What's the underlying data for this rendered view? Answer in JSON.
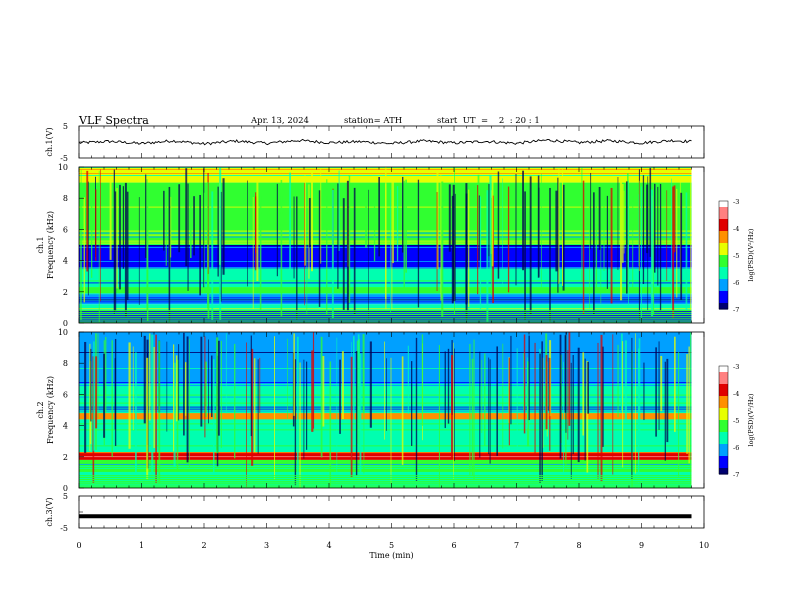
{
  "header": {
    "title": "VLF  Spectra",
    "date": "Apr. 13, 2024",
    "station": "station= ATH",
    "start": "start  UT  =    2  : 20 : 1"
  },
  "chart_data": [
    {
      "type": "line",
      "id": "ch1",
      "ylabel": "ch.1(V)",
      "ylim": [
        -5,
        5
      ],
      "yticks": [
        "5",
        "-5"
      ],
      "x": [
        0,
        0.5,
        1,
        1.5,
        2,
        2.5,
        3,
        3.5,
        4,
        4.5,
        5,
        5.5,
        6,
        6.5,
        7,
        7.5,
        8,
        8.5,
        9,
        9.5,
        9.8
      ],
      "y": [
        -0.3,
        0.2,
        -0.5,
        0.4,
        -0.6,
        0.3,
        -0.4,
        0.5,
        -0.2,
        0.1,
        -0.5,
        0.3,
        -0.3,
        0.2,
        -0.4,
        0.6,
        -0.2,
        0.4,
        -0.3,
        0.5,
        0.1
      ]
    },
    {
      "type": "heatmap",
      "id": "ch1-spectrogram",
      "ylabel_top": "ch.1",
      "ylabel": "Frequency  (kHz)",
      "ylim": [
        0,
        10
      ],
      "yticks": [
        "0",
        "2",
        "4",
        "6",
        "8",
        "10"
      ],
      "colorbar": {
        "label": "log(PSD)(V²/Hz)",
        "ticks": [
          "-3",
          "-4",
          "-5",
          "-6",
          "-7"
        ],
        "range": [
          -7,
          -3
        ]
      },
      "bands_khz": [
        {
          "from": 9.0,
          "to": 10.0,
          "level": -4.9
        },
        {
          "from": 5.0,
          "to": 9.0,
          "level": -5.3
        },
        {
          "from": 3.5,
          "to": 5.0,
          "level": -6.6
        },
        {
          "from": 2.3,
          "to": 3.5,
          "level": -5.7
        },
        {
          "from": 1.9,
          "to": 2.3,
          "level": -5.1
        },
        {
          "from": 1.2,
          "to": 1.9,
          "level": -6.3
        },
        {
          "from": 0.8,
          "to": 1.2,
          "level": -5.5
        },
        {
          "from": 0.0,
          "to": 0.8,
          "level": -6.7
        }
      ]
    },
    {
      "type": "heatmap",
      "id": "ch2-spectrogram",
      "ylabel_top": "ch.2",
      "ylabel": "Frequency  (kHz)",
      "ylim": [
        0,
        10
      ],
      "yticks": [
        "0",
        "2",
        "4",
        "6",
        "8",
        "10"
      ],
      "colorbar": {
        "label": "log(PSD)(V²/Hz)",
        "ticks": [
          "-3",
          "-4",
          "-5",
          "-6",
          "-7"
        ],
        "range": [
          -7,
          -3
        ]
      },
      "bands_khz": [
        {
          "from": 6.5,
          "to": 10.0,
          "level": -6.3
        },
        {
          "from": 4.8,
          "to": 6.5,
          "level": -5.8
        },
        {
          "from": 4.4,
          "to": 4.8,
          "level": -4.2
        },
        {
          "from": 2.3,
          "to": 4.4,
          "level": -5.6
        },
        {
          "from": 1.8,
          "to": 2.3,
          "level": -3.9
        },
        {
          "from": 1.0,
          "to": 1.8,
          "level": -5.2
        },
        {
          "from": 0.0,
          "to": 1.0,
          "level": -5.5
        }
      ]
    },
    {
      "type": "line",
      "id": "ch3",
      "ylabel": "ch.3(V)",
      "ylim": [
        -5,
        5
      ],
      "yticks": [
        "5",
        "-5"
      ],
      "x": [
        0,
        9.8
      ],
      "y": [
        -1.3,
        -1.3
      ]
    }
  ],
  "x_axis": {
    "label": "Time  (min)",
    "range": [
      0,
      10
    ],
    "ticks": [
      "0",
      "1",
      "2",
      "3",
      "4",
      "5",
      "6",
      "7",
      "8",
      "9",
      "10"
    ],
    "data_end": 9.8
  },
  "colors": {
    "colormap": [
      "#000070",
      "#0000ff",
      "#00a0ff",
      "#00ffb0",
      "#30ff30",
      "#e8ff00",
      "#ff9000",
      "#e00000",
      "#ff8080",
      "#ffffff"
    ]
  }
}
